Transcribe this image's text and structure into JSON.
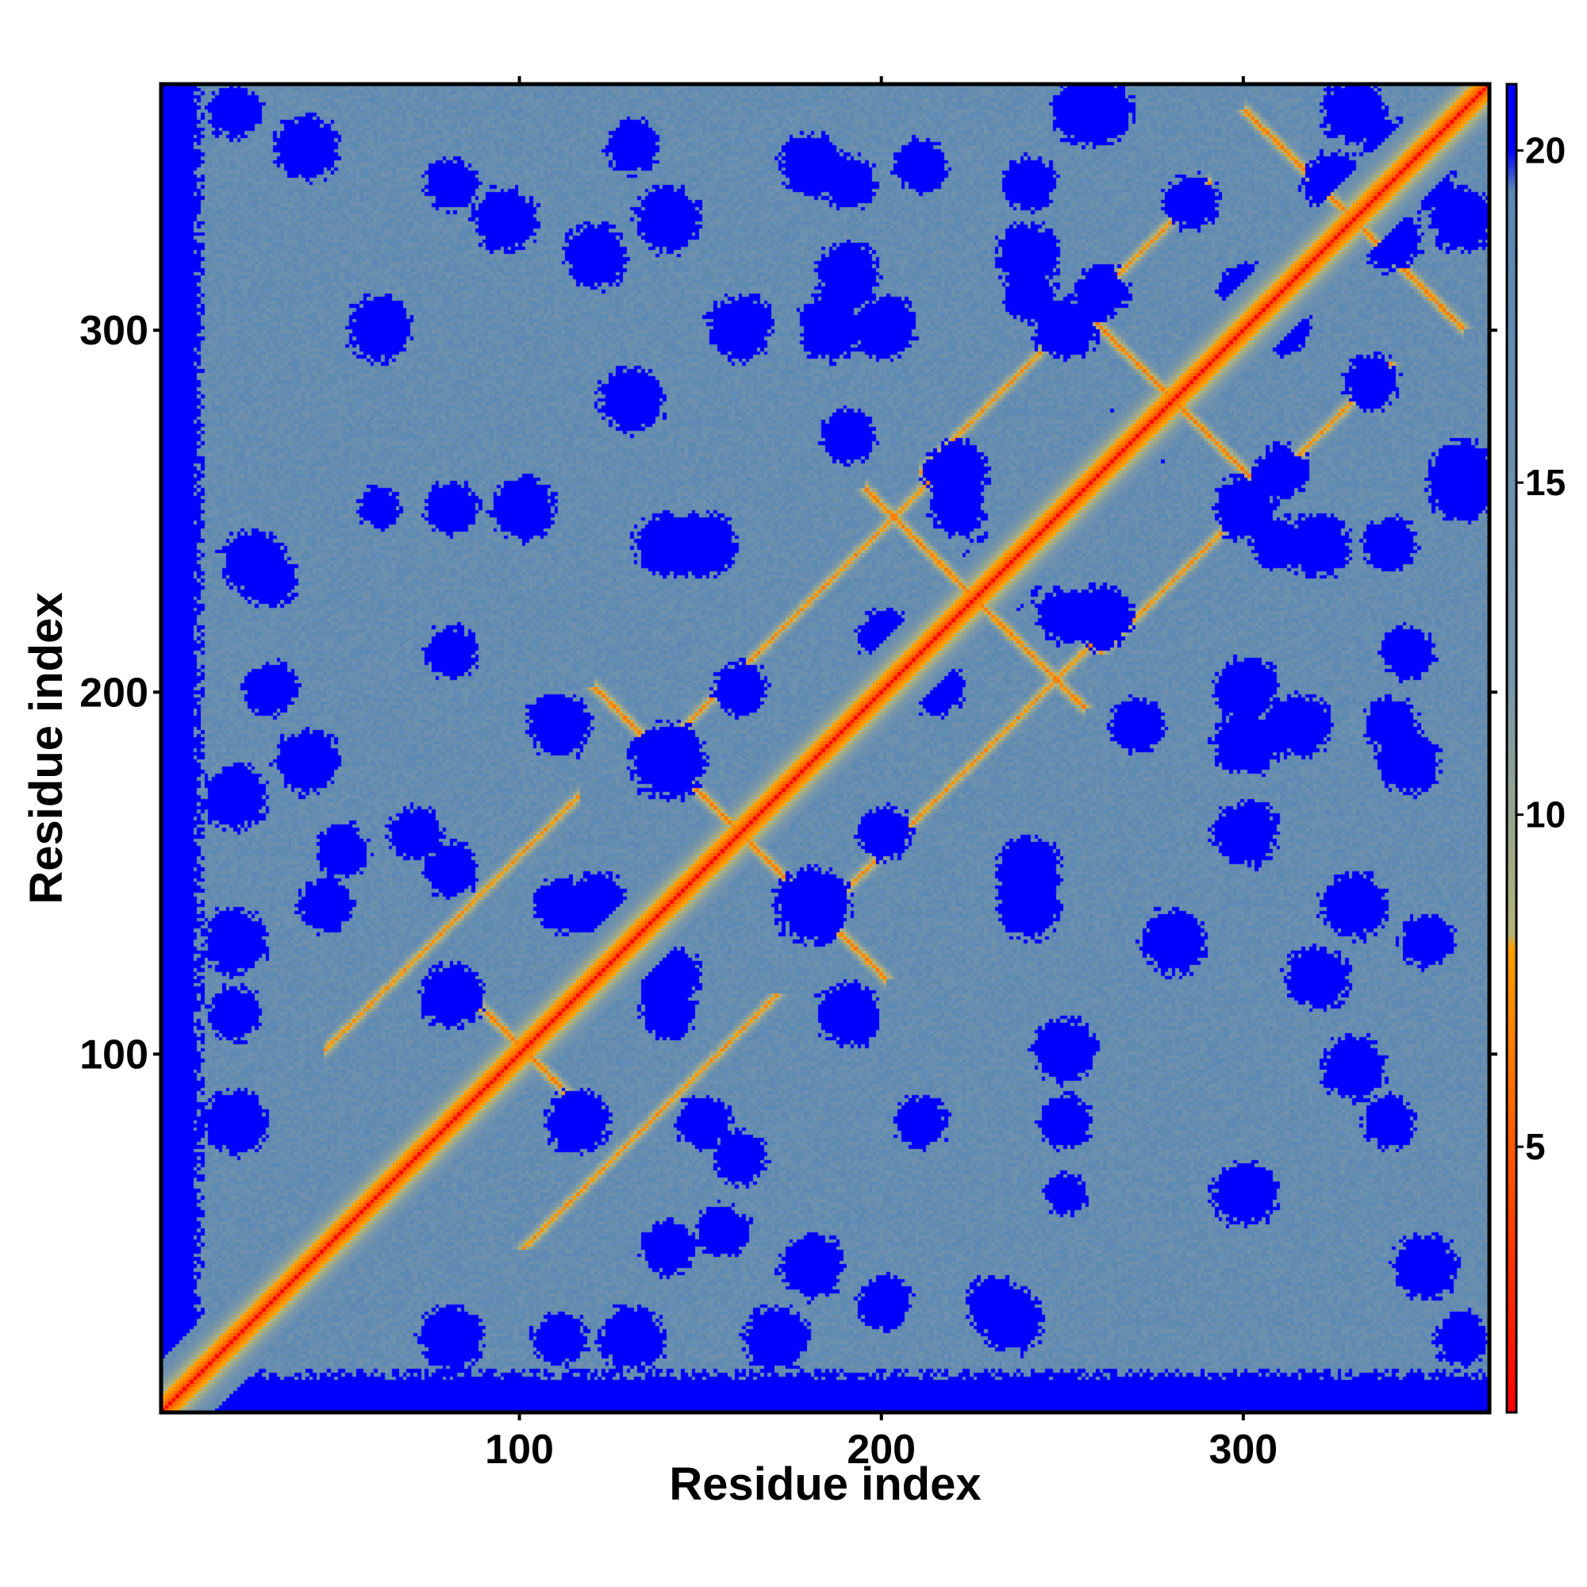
{
  "chart_data": {
    "type": "heatmap",
    "title": "",
    "xlabel": "Residue index",
    "ylabel": "Residue index",
    "n_residues": 368,
    "xlim": [
      1,
      368
    ],
    "ylim": [
      1,
      368
    ],
    "x_ticks": [
      100,
      200,
      300
    ],
    "y_ticks": [
      100,
      200,
      300
    ],
    "x_tick_labels": [
      "100",
      "200",
      "300"
    ],
    "y_tick_labels": [
      "100",
      "200",
      "300"
    ],
    "value_meaning": "pairwise residue distance",
    "colorbar": {
      "range": [
        1,
        21
      ],
      "ticks": [
        5,
        10,
        15,
        20
      ],
      "tick_labels": [
        "5",
        "10",
        "15",
        "20"
      ],
      "placement": "right",
      "stops": [
        {
          "value": 1,
          "color": "#ff0000"
        },
        {
          "value": 5,
          "color": "#ff5a00"
        },
        {
          "value": 8,
          "color": "#ffa000"
        },
        {
          "value": 9,
          "color": "#b4b478"
        },
        {
          "value": 13,
          "color": "#7896aa"
        },
        {
          "value": 20,
          "color": "#5a87b4"
        },
        {
          "value": 20.5,
          "color": "#0000ff"
        }
      ]
    },
    "cap_color": "#0000ff",
    "background_color": "#5a87b4",
    "diagonal_color": "#ff0000",
    "contact_bands": [
      {
        "type": "antiparallel",
        "center": 100,
        "span": 20
      },
      {
        "type": "antiparallel",
        "center": 160,
        "span": 40
      },
      {
        "type": "antiparallel",
        "center": 225,
        "span": 30
      },
      {
        "type": "antiparallel",
        "center": 280,
        "span": 25
      },
      {
        "type": "antiparallel",
        "center": 330,
        "span": 30
      },
      {
        "type": "parallel",
        "offset": 55,
        "from": 100,
        "to": 170
      },
      {
        "type": "parallel",
        "offset": 45,
        "from": 180,
        "to": 260
      },
      {
        "type": "parallel",
        "offset": 50,
        "from": 260,
        "to": 340
      }
    ],
    "blue_patches": [
      [
        20,
        170,
        3
      ],
      [
        30,
        230,
        2.5
      ],
      [
        60,
        300,
        3
      ],
      [
        80,
        150,
        2.5
      ],
      [
        95,
        330,
        3
      ],
      [
        115,
        80,
        3
      ],
      [
        120,
        140,
        3
      ],
      [
        140,
        330,
        3
      ],
      [
        140,
        180,
        3.5
      ],
      [
        140,
        240,
        3
      ],
      [
        140,
        110,
        2.5
      ],
      [
        160,
        300,
        3
      ],
      [
        180,
        40,
        3
      ],
      [
        180,
        140,
        3
      ],
      [
        185,
        300,
        3
      ],
      [
        200,
        160,
        2.5
      ],
      [
        210,
        80,
        2.5
      ],
      [
        210,
        345,
        2.5
      ],
      [
        220,
        260,
        2.5
      ],
      [
        235,
        25,
        3
      ],
      [
        240,
        150,
        3
      ],
      [
        240,
        310,
        2.5
      ],
      [
        250,
        220,
        2.5
      ],
      [
        255,
        360,
        3
      ],
      [
        260,
        220,
        3
      ],
      [
        270,
        190,
        2.5
      ],
      [
        280,
        130,
        3
      ],
      [
        300,
        200,
        3
      ],
      [
        310,
        260,
        2.5
      ],
      [
        320,
        240,
        3
      ],
      [
        320,
        120,
        3
      ],
      [
        330,
        360,
        3
      ],
      [
        340,
        80,
        2.5
      ],
      [
        345,
        180,
        3
      ],
      [
        350,
        130,
        2.5
      ],
      [
        350,
        40,
        3
      ],
      [
        360,
        20,
        2.5
      ],
      [
        315,
        190,
        3
      ],
      [
        310,
        300,
        2.5
      ],
      [
        325,
        340,
        3
      ],
      [
        215,
        200,
        2.5
      ],
      [
        230,
        235,
        2.5
      ],
      [
        100,
        250,
        3
      ],
      [
        270,
        270,
        3
      ],
      [
        300,
        250,
        3
      ],
      [
        80,
        250,
        2.5
      ],
      [
        60,
        250,
        2
      ],
      [
        110,
        190,
        3
      ],
      [
        20,
        110,
        2.5
      ],
      [
        45,
        140,
        2.5
      ],
      [
        70,
        160,
        2.5
      ],
      [
        80,
        20,
        3
      ],
      [
        130,
        20,
        3
      ],
      [
        155,
        50,
        2.5
      ],
      [
        200,
        30,
        2.5
      ],
      [
        190,
        340,
        2.5
      ],
      [
        350,
        340,
        2.5
      ],
      [
        340,
        240,
        2.5
      ],
      [
        360,
        260,
        3
      ],
      [
        335,
        285,
        2.5
      ]
    ]
  }
}
